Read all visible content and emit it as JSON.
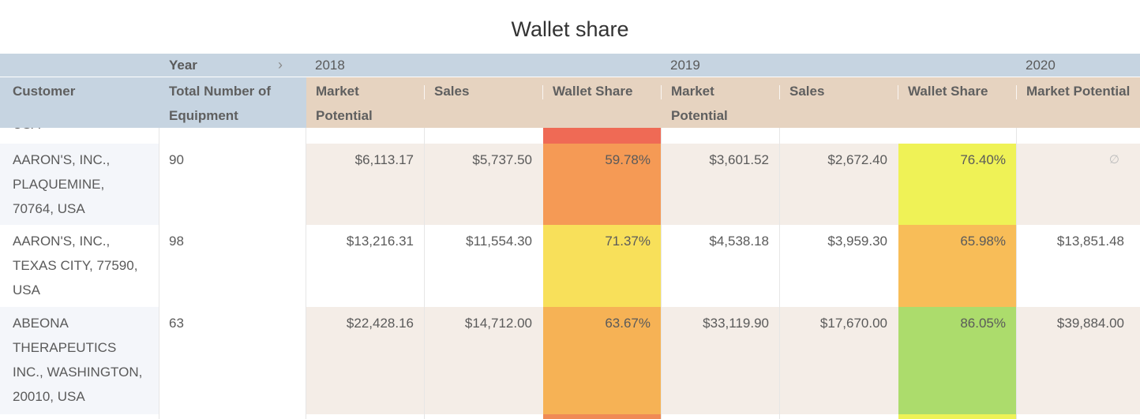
{
  "title": "Wallet share",
  "header": {
    "year_label": "Year",
    "year_arrow": "chevron-right-icon",
    "years": [
      "2018",
      "2019",
      "2020"
    ],
    "customer_label": "Customer",
    "equipment_label": "Total Number of Equipment",
    "columns": [
      {
        "label": "Market Potential"
      },
      {
        "label": "Sales"
      },
      {
        "label": "Wallet Share"
      },
      {
        "label": "Market Potential"
      },
      {
        "label": "Sales"
      },
      {
        "label": "Wallet Share"
      },
      {
        "label": "Market Potential"
      }
    ]
  },
  "cut_row": {
    "customer": "USA"
  },
  "rows": [
    {
      "customer": "AARON'S, INC., PLAQUEMINE, 70764, USA",
      "equipment": "90",
      "mp_2018": "$6,113.17",
      "sales_2018": "$5,737.50",
      "ws_2018": "59.78%",
      "mp_2019": "$3,601.52",
      "sales_2019": "$2,672.40",
      "ws_2019": "76.40%",
      "mp_2020": "∅"
    },
    {
      "customer": "AARON'S, INC., TEXAS CITY, 77590, USA",
      "equipment": "98",
      "mp_2018": "$13,216.31",
      "sales_2018": "$11,554.30",
      "ws_2018": "71.37%",
      "mp_2019": "$4,538.18",
      "sales_2019": "$3,959.30",
      "ws_2019": "65.98%",
      "mp_2020": "$13,851.48"
    },
    {
      "customer": "ABEONA THERAPEUTICS INC., WASHINGTON, 20010, USA",
      "equipment": "63",
      "mp_2018": "$22,428.16",
      "sales_2018": "$14,712.00",
      "ws_2018": "63.67%",
      "mp_2019": "$33,119.90",
      "sales_2019": "$17,670.00",
      "ws_2019": "86.05%",
      "mp_2020": "$39,884.00"
    }
  ],
  "colors": {
    "header_blue": "#c6d4e1",
    "header_tan": "#e6d3c0",
    "ws_cut_row_2018": "#ef6a55",
    "ws_row1_2018": "#f59a55",
    "ws_row1_2019": "#eff256",
    "ws_row2_2018": "#f8e05a",
    "ws_row2_2019": "#f8bd58",
    "ws_row3_2018": "#f6b255",
    "ws_row3_2019": "#acdc6c",
    "ws_bottom_2018": "#f08a55",
    "ws_bottom_2019": "#eef256"
  }
}
